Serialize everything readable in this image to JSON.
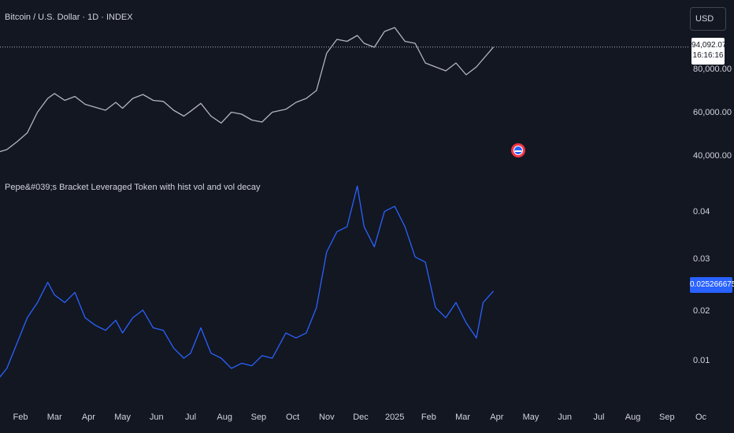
{
  "header": {
    "title": "Bitcoin / U.S. Dollar · 1D · INDEX",
    "currency": "USD"
  },
  "indicator": {
    "title": "Pepe&#039;s Bracket Leveraged Token with hist vol and vol decay"
  },
  "price_tag": {
    "price": "94,092.07",
    "countdown": "16:16:16"
  },
  "current_value": "0.0252666756",
  "colors": {
    "background": "#131722",
    "btc_line": "#b2b5be",
    "indicator_line": "#2962ff",
    "badge_red": "#f23645",
    "badge_blue": "#2962ff"
  },
  "chart_data": [
    {
      "type": "line",
      "title": "Bitcoin / U.S. Dollar · 1D · INDEX",
      "x_ticks": [
        "Feb",
        "Mar",
        "Apr",
        "May",
        "Jun",
        "Jul",
        "Aug",
        "Sep",
        "Oct",
        "Nov",
        "Dec",
        "2025",
        "Feb",
        "Mar",
        "Apr",
        "May",
        "Jun",
        "Jul",
        "Aug",
        "Sep",
        "Oc"
      ],
      "y_ticks": [
        "40,000.00",
        "60,000.00",
        "80,000.00"
      ],
      "ylim": [
        38000,
        110000
      ],
      "series": [
        {
          "name": "BTC",
          "points": [
            [
              0.0,
              40000
            ],
            [
              0.3,
              40500
            ],
            [
              0.6,
              42000
            ],
            [
              0.9,
              46000
            ],
            [
              1.2,
              50500
            ],
            [
              1.5,
              61000
            ],
            [
              1.8,
              68000
            ],
            [
              2.0,
              70500
            ],
            [
              2.3,
              67000
            ],
            [
              2.6,
              69000
            ],
            [
              2.9,
              65000
            ],
            [
              3.2,
              63500
            ],
            [
              3.5,
              62000
            ],
            [
              3.8,
              66000
            ],
            [
              4.0,
              63000
            ],
            [
              4.3,
              68000
            ],
            [
              4.6,
              70000
            ],
            [
              4.9,
              67000
            ],
            [
              5.2,
              66500
            ],
            [
              5.5,
              62000
            ],
            [
              5.8,
              59000
            ],
            [
              6.0,
              61500
            ],
            [
              6.3,
              65500
            ],
            [
              6.6,
              59000
            ],
            [
              6.9,
              55500
            ],
            [
              7.2,
              61000
            ],
            [
              7.5,
              60000
            ],
            [
              7.8,
              57000
            ],
            [
              8.1,
              56000
            ],
            [
              8.4,
              61000
            ],
            [
              8.8,
              62500
            ],
            [
              9.1,
              66000
            ],
            [
              9.4,
              68000
            ],
            [
              9.7,
              72000
            ],
            [
              10.0,
              91000
            ],
            [
              10.3,
              98000
            ],
            [
              10.6,
              97000
            ],
            [
              10.9,
              100000
            ],
            [
              11.1,
              96000
            ],
            [
              11.4,
              94000
            ],
            [
              11.7,
              102000
            ],
            [
              12.0,
              104000
            ],
            [
              12.3,
              97000
            ],
            [
              12.6,
              96000
            ],
            [
              12.9,
              86000
            ],
            [
              13.2,
              84000
            ],
            [
              13.5,
              82000
            ],
            [
              13.8,
              86000
            ],
            [
              14.1,
              80000
            ],
            [
              14.4,
              84000
            ],
            [
              14.6,
              88000
            ],
            [
              14.9,
              94092
            ]
          ]
        }
      ]
    },
    {
      "type": "line",
      "title": "Pepe&#039;s Bracket Leveraged Token with hist vol and vol decay",
      "y_ticks": [
        "0.04",
        "0.03",
        "0.02",
        "0.01"
      ],
      "ylim": [
        0.005,
        0.047
      ],
      "series": [
        {
          "name": "Leveraged Token",
          "points": [
            [
              0.0,
              0.007
            ],
            [
              0.3,
              0.0075
            ],
            [
              0.6,
              0.01
            ],
            [
              0.9,
              0.015
            ],
            [
              1.2,
              0.02
            ],
            [
              1.5,
              0.023
            ],
            [
              1.8,
              0.027
            ],
            [
              2.0,
              0.0245
            ],
            [
              2.3,
              0.023
            ],
            [
              2.6,
              0.025
            ],
            [
              2.9,
              0.02
            ],
            [
              3.2,
              0.0185
            ],
            [
              3.5,
              0.0175
            ],
            [
              3.8,
              0.0195
            ],
            [
              4.0,
              0.017
            ],
            [
              4.3,
              0.02
            ],
            [
              4.6,
              0.0215
            ],
            [
              4.9,
              0.018
            ],
            [
              5.2,
              0.0175
            ],
            [
              5.5,
              0.014
            ],
            [
              5.8,
              0.012
            ],
            [
              6.0,
              0.013
            ],
            [
              6.3,
              0.018
            ],
            [
              6.6,
              0.013
            ],
            [
              6.9,
              0.012
            ],
            [
              7.2,
              0.01
            ],
            [
              7.5,
              0.011
            ],
            [
              7.8,
              0.0105
            ],
            [
              8.1,
              0.0125
            ],
            [
              8.4,
              0.012
            ],
            [
              8.8,
              0.017
            ],
            [
              9.1,
              0.016
            ],
            [
              9.4,
              0.017
            ],
            [
              9.7,
              0.022
            ],
            [
              10.0,
              0.033
            ],
            [
              10.3,
              0.037
            ],
            [
              10.6,
              0.038
            ],
            [
              10.9,
              0.046
            ],
            [
              11.1,
              0.038
            ],
            [
              11.4,
              0.034
            ],
            [
              11.7,
              0.041
            ],
            [
              12.0,
              0.042
            ],
            [
              12.3,
              0.038
            ],
            [
              12.6,
              0.032
            ],
            [
              12.9,
              0.031
            ],
            [
              13.2,
              0.022
            ],
            [
              13.5,
              0.02
            ],
            [
              13.8,
              0.023
            ],
            [
              14.1,
              0.019
            ],
            [
              14.4,
              0.016
            ],
            [
              14.6,
              0.023
            ],
            [
              14.9,
              0.02527
            ]
          ]
        }
      ]
    }
  ]
}
